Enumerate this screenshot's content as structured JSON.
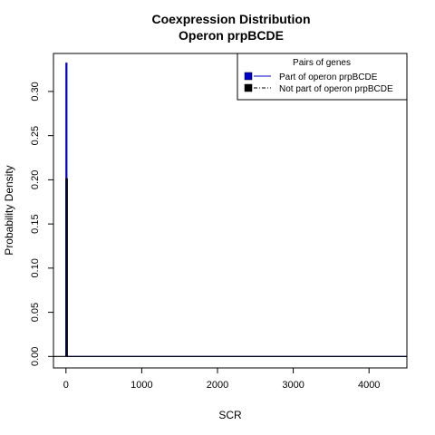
{
  "chart_data": {
    "type": "line",
    "title": "Coexpression Distribution",
    "subtitle": "Operon prpBCDE",
    "xlabel": "SCR",
    "ylabel": "Probability Density",
    "xlim": [
      -165,
      4500
    ],
    "ylim": [
      -0.013,
      0.343
    ],
    "x_ticks": [
      0,
      1000,
      2000,
      3000,
      4000
    ],
    "y_ticks": [
      0.0,
      0.05,
      0.1,
      0.15,
      0.2,
      0.25,
      0.3
    ],
    "x_tick_labels": [
      "0",
      "1000",
      "2000",
      "3000",
      "4000"
    ],
    "y_tick_labels": [
      "0.00",
      "0.05",
      "0.10",
      "0.15",
      "0.20",
      "0.25",
      "0.30"
    ],
    "grid": false,
    "legend": {
      "title": "Pairs of genes",
      "placement": "top-right",
      "entries": [
        {
          "label": "Part of operon prpBCDE",
          "color": "#0000cc",
          "line": "solid"
        },
        {
          "label": "Not part of operon prpBCDE",
          "color": "#000000",
          "line": "dashed"
        }
      ]
    },
    "series": [
      {
        "name": "Part of operon prpBCDE",
        "color": "#0000cc",
        "points": [
          [
            0,
            0.0
          ],
          [
            0,
            0.332
          ],
          [
            12,
            0.332
          ],
          [
            12,
            0.0
          ],
          [
            4500,
            0.0
          ]
        ]
      },
      {
        "name": "Not part of operon prpBCDE",
        "color": "#000000",
        "points": [
          [
            -165,
            0.0
          ],
          [
            0,
            0.0
          ],
          [
            0,
            0.201
          ],
          [
            18,
            0.201
          ],
          [
            18,
            0.0
          ],
          [
            4500,
            0.0
          ]
        ]
      }
    ]
  }
}
